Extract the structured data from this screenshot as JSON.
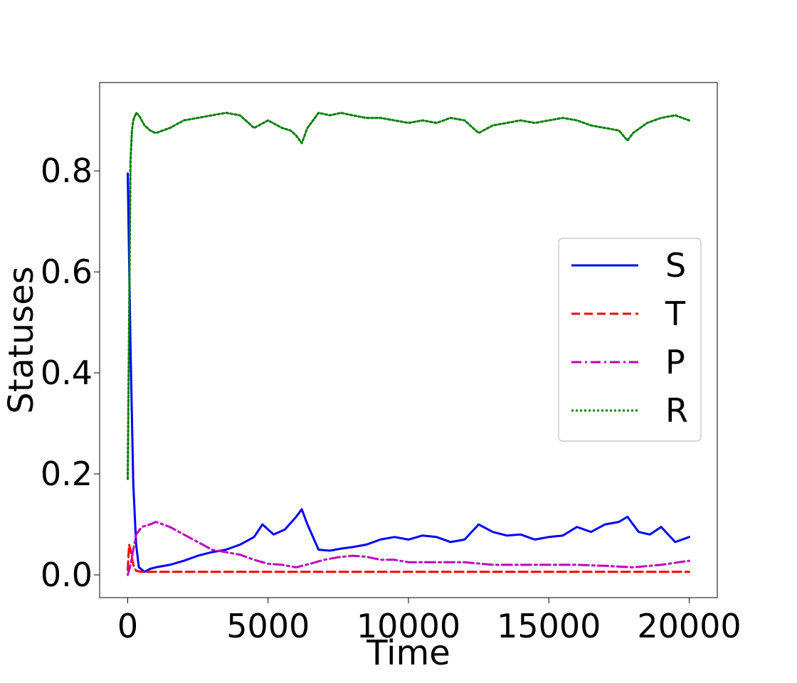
{
  "chart_data": {
    "type": "line",
    "title": "",
    "xlabel": "Time",
    "ylabel": "Statuses",
    "xlim": [
      -1000,
      21000
    ],
    "ylim": [
      -0.045,
      0.975
    ],
    "xticks": [
      0,
      5000,
      10000,
      15000,
      20000
    ],
    "xtick_labels": [
      "0",
      "5000",
      "10000",
      "15000",
      "20000"
    ],
    "yticks": [
      0.0,
      0.2,
      0.4,
      0.6,
      0.8
    ],
    "ytick_labels": [
      "0.0",
      "0.2",
      "0.4",
      "0.6",
      "0.8"
    ],
    "grid": false,
    "legend_position": "center-right",
    "series": [
      {
        "name": "S",
        "color": "#0000ff",
        "style": "solid",
        "x": [
          0,
          100,
          200,
          300,
          400,
          600,
          800,
          1000,
          1500,
          2000,
          2500,
          3000,
          3500,
          4000,
          4500,
          4800,
          5200,
          5600,
          6000,
          6200,
          6400,
          6800,
          7200,
          7600,
          8000,
          8500,
          9000,
          9500,
          10000,
          10500,
          11000,
          11500,
          12000,
          12500,
          13000,
          13500,
          14000,
          14500,
          15000,
          15500,
          16000,
          16500,
          17000,
          17500,
          17800,
          18200,
          18600,
          19000,
          19500,
          20000
        ],
        "y": [
          0.795,
          0.45,
          0.18,
          0.06,
          0.015,
          0.006,
          0.012,
          0.015,
          0.02,
          0.028,
          0.038,
          0.045,
          0.05,
          0.06,
          0.075,
          0.1,
          0.08,
          0.09,
          0.115,
          0.13,
          0.1,
          0.05,
          0.048,
          0.052,
          0.055,
          0.06,
          0.07,
          0.075,
          0.07,
          0.078,
          0.075,
          0.065,
          0.07,
          0.1,
          0.085,
          0.078,
          0.08,
          0.07,
          0.075,
          0.078,
          0.095,
          0.085,
          0.1,
          0.105,
          0.115,
          0.085,
          0.08,
          0.095,
          0.065,
          0.075
        ]
      },
      {
        "name": "T",
        "color": "#ff0000",
        "style": "dashed",
        "x": [
          0,
          50,
          100,
          150,
          200,
          300,
          500,
          1000,
          2000,
          4000,
          6000,
          8000,
          10000,
          12000,
          14000,
          16000,
          18000,
          20000
        ],
        "y": [
          0.01,
          0.06,
          0.05,
          0.035,
          0.02,
          0.008,
          0.006,
          0.006,
          0.006,
          0.006,
          0.006,
          0.006,
          0.006,
          0.006,
          0.006,
          0.006,
          0.006,
          0.006
        ]
      },
      {
        "name": "P",
        "color": "#bf00bf",
        "style": "dashdot",
        "x": [
          0,
          100,
          200,
          300,
          500,
          800,
          1000,
          1500,
          2000,
          2500,
          3000,
          3500,
          4000,
          4500,
          5000,
          5500,
          6000,
          6500,
          7000,
          7500,
          8000,
          8500,
          9000,
          9500,
          10000,
          11000,
          12000,
          13000,
          14000,
          15000,
          16000,
          17000,
          18000,
          19000,
          20000
        ],
        "y": [
          0.0,
          0.02,
          0.05,
          0.08,
          0.095,
          0.1,
          0.105,
          0.095,
          0.08,
          0.065,
          0.05,
          0.045,
          0.04,
          0.03,
          0.022,
          0.02,
          0.015,
          0.022,
          0.03,
          0.035,
          0.038,
          0.036,
          0.03,
          0.03,
          0.025,
          0.025,
          0.025,
          0.02,
          0.02,
          0.02,
          0.02,
          0.018,
          0.015,
          0.02,
          0.028
        ]
      },
      {
        "name": "R",
        "color": "#008000",
        "style": "dotted",
        "x": [
          0,
          50,
          100,
          150,
          200,
          300,
          400,
          600,
          800,
          1000,
          1500,
          2000,
          2500,
          3000,
          3500,
          4000,
          4500,
          5000,
          5500,
          5800,
          6000,
          6200,
          6400,
          6800,
          7200,
          7600,
          8000,
          8500,
          9000,
          9500,
          10000,
          10500,
          11000,
          11500,
          12000,
          12500,
          13000,
          13500,
          14000,
          14500,
          15000,
          15500,
          16000,
          16500,
          17000,
          17500,
          17800,
          18000,
          18500,
          19000,
          19500,
          20000
        ],
        "y": [
          0.19,
          0.5,
          0.82,
          0.88,
          0.9,
          0.915,
          0.91,
          0.89,
          0.88,
          0.875,
          0.885,
          0.9,
          0.905,
          0.91,
          0.915,
          0.91,
          0.885,
          0.9,
          0.885,
          0.88,
          0.87,
          0.855,
          0.885,
          0.915,
          0.91,
          0.915,
          0.91,
          0.905,
          0.905,
          0.9,
          0.895,
          0.9,
          0.895,
          0.905,
          0.9,
          0.875,
          0.89,
          0.895,
          0.9,
          0.895,
          0.9,
          0.905,
          0.9,
          0.89,
          0.885,
          0.88,
          0.86,
          0.875,
          0.895,
          0.905,
          0.91,
          0.9
        ]
      }
    ]
  }
}
